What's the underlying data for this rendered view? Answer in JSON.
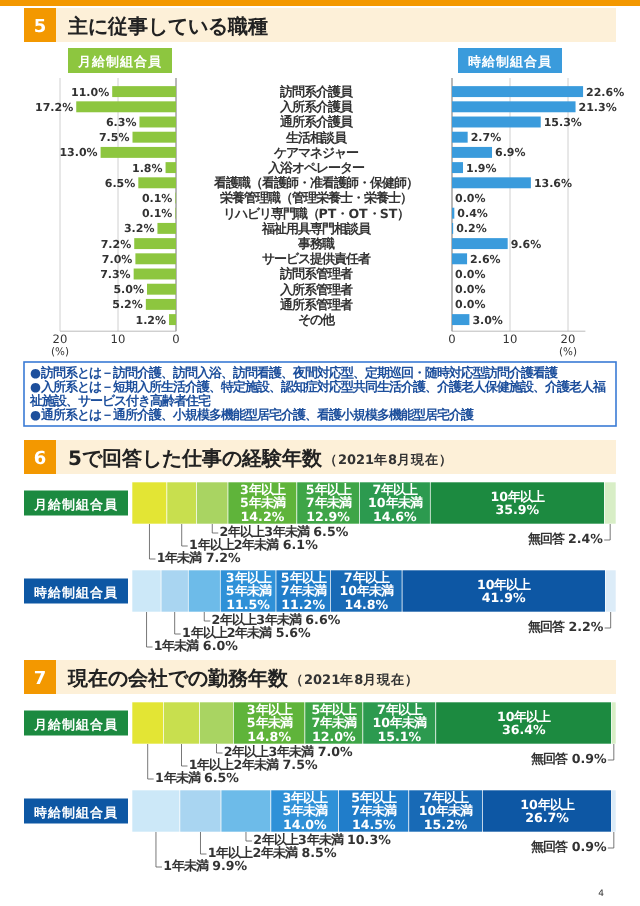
{
  "chart_data": [
    {
      "type": "other",
      "title": "主に従事している職種",
      "annotations": [
        "5"
      ]
    },
    {
      "type": "bar",
      "orientation": "horizontal",
      "title": "月給制組合員",
      "categories": [
        "訪問系介護員",
        "入所系介護員",
        "通所系介護員",
        "生活相談員",
        "ケアマネジャー",
        "入浴オペレーター",
        "看護職（看護師・准看護師・保健師）",
        "栄養管理職（管理栄養士・栄養士）",
        "リハビリ専門職（PT・OT・ST）",
        "福祉用具専門相談員",
        "事務職",
        "サービス提供責任者",
        "訪問系管理者",
        "入所系管理者",
        "通所系管理者",
        "その他"
      ],
      "values": [
        11.0,
        17.2,
        6.3,
        7.5,
        13.0,
        1.8,
        6.5,
        0.1,
        0.1,
        3.2,
        7.2,
        7.0,
        7.3,
        5.0,
        5.2,
        1.2
      ],
      "value_labels": [
        "11.0%",
        "17.2%",
        "6.3%",
        "7.5%",
        "13.0%",
        "1.8%",
        "6.5%",
        "0.1%",
        "0.1%",
        "3.2%",
        "7.2%",
        "7.0%",
        "7.3%",
        "5.0%",
        "5.2%",
        "1.2%"
      ],
      "color": "#8dc63f",
      "xlim": [
        20,
        0
      ],
      "xticks": [
        0,
        10,
        20
      ],
      "xlabel": "(%)",
      "grid": "x"
    },
    {
      "type": "bar",
      "orientation": "horizontal",
      "title": "時給制組合員",
      "values": [
        22.6,
        21.3,
        15.3,
        2.7,
        6.9,
        1.9,
        13.6,
        0.0,
        0.4,
        0.2,
        9.6,
        2.6,
        0.0,
        0.0,
        0.0,
        3.0
      ],
      "value_labels": [
        "22.6%",
        "21.3%",
        "15.3%",
        "2.7%",
        "6.9%",
        "1.9%",
        "13.6%",
        "0.0%",
        "0.4%",
        "0.2%",
        "9.6%",
        "2.6%",
        "0.0%",
        "0.0%",
        "0.0%",
        "3.0%"
      ],
      "color": "#3a9bdc",
      "xlim": [
        0,
        23
      ],
      "xticks": [
        0,
        10,
        20
      ],
      "xlabel": "(%)",
      "grid": "x",
      "tick_labels": "x",
      "annotations": [
        "●訪問系とは－訪問介護、訪問入浴、訪問看護、夜間対応型、定期巡回・随時対応型訪問介護看護",
        "●入所系とは－短期入所生活介護、特定施設、認知症対応型共同生活介護、介護老人保健施設、介護老人福祉施設、サービス付き高齢者住宅",
        "●通所系とは－通所介護、小規模多機能型居宅介護、看護小規模多機能型居宅介護"
      ]
    },
    {
      "type": "other",
      "title": "5で回答した仕事の経験年数",
      "subtitle": "（2021年8月現在）",
      "annotations": [
        "6"
      ]
    },
    {
      "type": "bar",
      "orientation": "horizontal",
      "stacked": true,
      "title": "月給制組合員",
      "categories": [
        null
      ],
      "series": [
        {
          "name": "1年未満",
          "color": "#e3e534",
          "values": [
            7.2
          ],
          "value_labels": [
            "7.2%"
          ]
        },
        {
          "name": "1年以上2年未満",
          "color": "#c8df4e",
          "values": [
            6.1
          ],
          "value_labels": [
            "6.1%"
          ]
        },
        {
          "name": "2年以上3年未満",
          "color": "#a9d462",
          "values": [
            6.5
          ],
          "value_labels": [
            "6.5%"
          ]
        },
        {
          "name": "3年以上5年未満",
          "color": "#5fb43a",
          "values": [
            14.2
          ],
          "value_labels": [
            "14.2%"
          ]
        },
        {
          "name": "5年以上7年未満",
          "color": "#3ea547",
          "values": [
            12.9
          ],
          "value_labels": [
            "12.9%"
          ]
        },
        {
          "name": "7年以上10年未満",
          "color": "#2c9a4f",
          "values": [
            14.6
          ],
          "value_labels": [
            "14.6%"
          ]
        },
        {
          "name": "10年以上",
          "color": "#1c8a40",
          "values": [
            35.9
          ],
          "value_labels": [
            "35.9%"
          ]
        },
        {
          "name": "無回答",
          "color": "#d8eec6",
          "values": [
            2.4
          ],
          "value_labels": [
            "2.4%"
          ]
        }
      ]
    },
    {
      "type": "bar",
      "orientation": "horizontal",
      "stacked": true,
      "title": "時給制組合員",
      "categories": [
        null
      ],
      "series": [
        {
          "name": "1年未満",
          "color": "#cce8f8",
          "values": [
            6.0
          ],
          "value_labels": [
            "6.0%"
          ]
        },
        {
          "name": "1年以上2年未満",
          "color": "#a9d5f1",
          "values": [
            5.6
          ],
          "value_labels": [
            "5.6%"
          ]
        },
        {
          "name": "2年以上3年未満",
          "color": "#6dbbe9",
          "values": [
            6.6
          ],
          "value_labels": [
            "6.6%"
          ]
        },
        {
          "name": "3年以上5年未満",
          "color": "#2f91d8",
          "values": [
            11.5
          ],
          "value_labels": [
            "11.5%"
          ]
        },
        {
          "name": "5年以上7年未満",
          "color": "#207dca",
          "values": [
            11.2
          ],
          "value_labels": [
            "11.2%"
          ]
        },
        {
          "name": "7年以上10年未満",
          "color": "#186ab6",
          "values": [
            14.8
          ],
          "value_labels": [
            "14.8%"
          ]
        },
        {
          "name": "10年以上",
          "color": "#0d57a4",
          "values": [
            41.9
          ],
          "value_labels": [
            "41.9%"
          ]
        },
        {
          "name": "無回答",
          "color": "#dcecf8",
          "values": [
            2.2
          ],
          "value_labels": [
            "2.2%"
          ]
        }
      ]
    },
    {
      "type": "other",
      "title": "現在の会社での勤務年数",
      "subtitle": "（2021年8月現在）",
      "annotations": [
        "7"
      ]
    },
    {
      "type": "bar",
      "orientation": "horizontal",
      "stacked": true,
      "title": "月給制組合員",
      "categories": [
        null
      ],
      "series": [
        {
          "name": "1年未満",
          "color": "#e3e534",
          "values": [
            6.5
          ],
          "value_labels": [
            "6.5%"
          ]
        },
        {
          "name": "1年以上2年未満",
          "color": "#c8df4e",
          "values": [
            7.5
          ],
          "value_labels": [
            "7.5%"
          ]
        },
        {
          "name": "2年以上3年未満",
          "color": "#a9d462",
          "values": [
            7.0
          ],
          "value_labels": [
            "7.0%"
          ]
        },
        {
          "name": "3年以上5年未満",
          "color": "#5fb43a",
          "values": [
            14.8
          ],
          "value_labels": [
            "14.8%"
          ]
        },
        {
          "name": "5年以上7年未満",
          "color": "#3ea547",
          "values": [
            12.0
          ],
          "value_labels": [
            "12.0%"
          ]
        },
        {
          "name": "7年以上10年未満",
          "color": "#2c9a4f",
          "values": [
            15.1
          ],
          "value_labels": [
            "15.1%"
          ]
        },
        {
          "name": "10年以上",
          "color": "#1c8a40",
          "values": [
            36.4
          ],
          "value_labels": [
            "36.4%"
          ]
        },
        {
          "name": "無回答",
          "color": "#d8eec6",
          "values": [
            0.9
          ],
          "value_labels": [
            "0.9%"
          ]
        }
      ]
    },
    {
      "type": "bar",
      "orientation": "horizontal",
      "stacked": true,
      "title": "時給制組合員",
      "categories": [
        null
      ],
      "series": [
        {
          "name": "1年未満",
          "color": "#cce8f8",
          "values": [
            9.9
          ],
          "value_labels": [
            "9.9%"
          ]
        },
        {
          "name": "1年以上2年未満",
          "color": "#a9d5f1",
          "values": [
            8.5
          ],
          "value_labels": [
            "8.5%"
          ]
        },
        {
          "name": "2年以上3年未満",
          "color": "#6dbbe9",
          "values": [
            10.3
          ],
          "value_labels": [
            "10.3%"
          ]
        },
        {
          "name": "3年以上5年未満",
          "color": "#2f91d8",
          "values": [
            14.0
          ],
          "value_labels": [
            "14.0%"
          ]
        },
        {
          "name": "5年以上7年未満",
          "color": "#207dca",
          "values": [
            14.5
          ],
          "value_labels": [
            "14.5%"
          ]
        },
        {
          "name": "7年以上10年未満",
          "color": "#186ab6",
          "values": [
            15.2
          ],
          "value_labels": [
            "15.2%"
          ]
        },
        {
          "name": "10年以上",
          "color": "#0d57a4",
          "values": [
            26.7
          ],
          "value_labels": [
            "26.7%"
          ]
        },
        {
          "name": "無回答",
          "color": "#dcecf8",
          "values": [
            0.9
          ],
          "value_labels": [
            "0.9%"
          ]
        }
      ],
      "annotations": [
        "4"
      ]
    }
  ]
}
